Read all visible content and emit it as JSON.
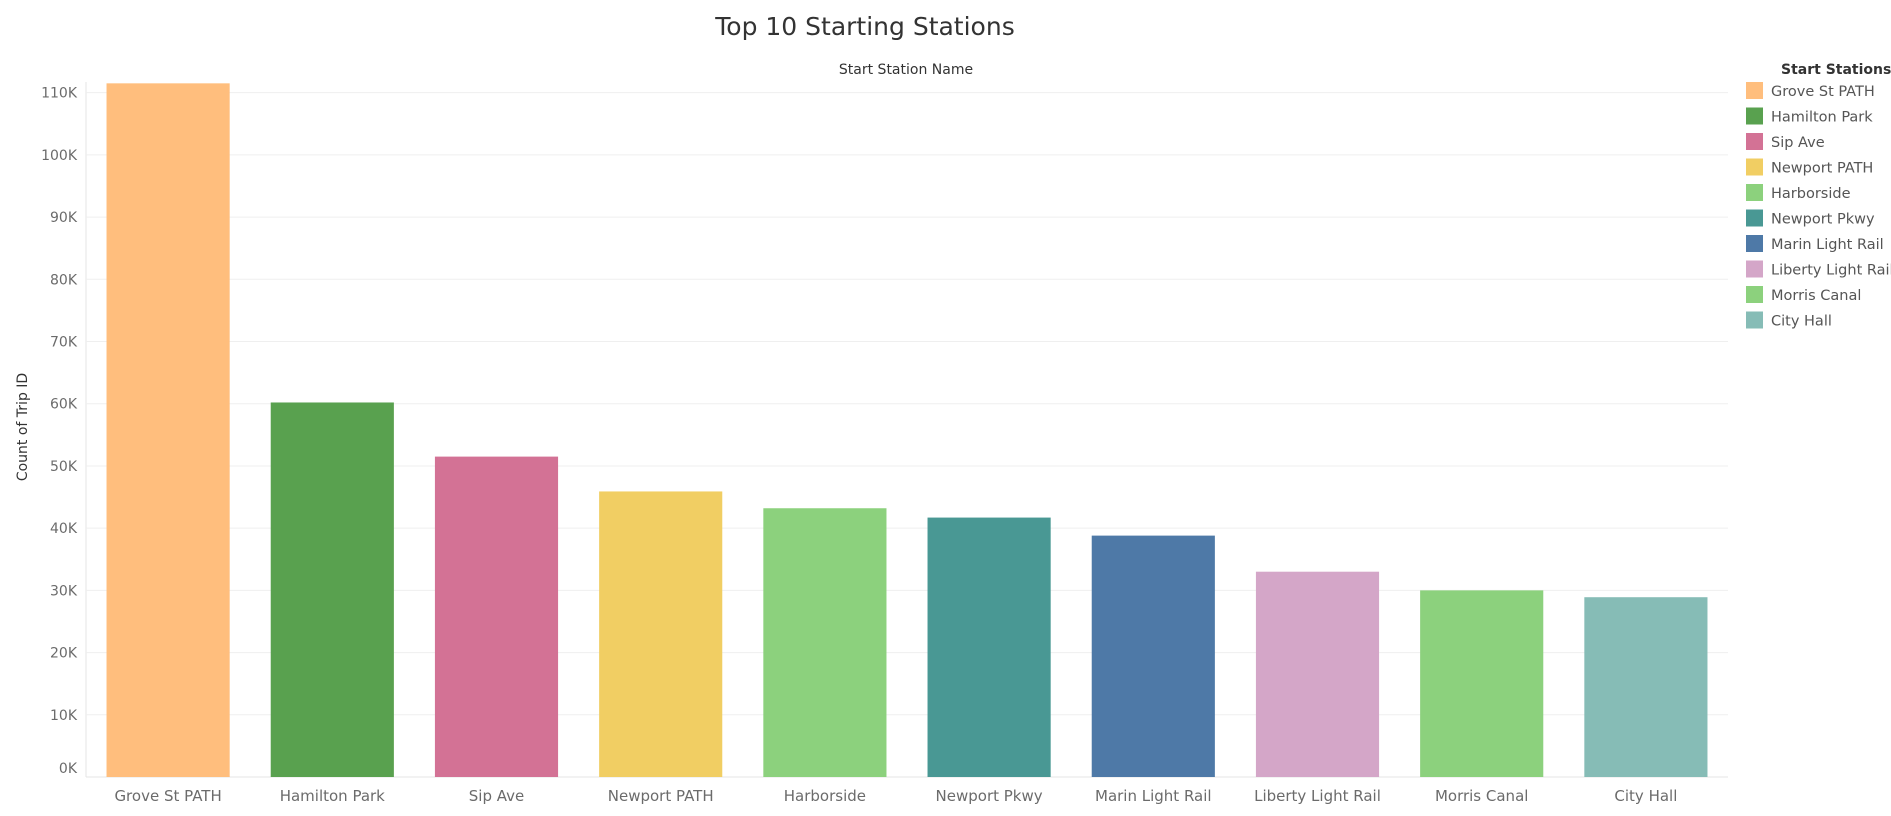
{
  "chart_data": {
    "type": "bar",
    "title": "Top 10 Starting Stations",
    "subtitle": "Start Station Name",
    "xlabel": "",
    "ylabel": "Count of Trip ID",
    "ylim": [
      0,
      113000
    ],
    "yticks": [
      0,
      10000,
      20000,
      30000,
      40000,
      50000,
      60000,
      70000,
      80000,
      90000,
      100000,
      110000
    ],
    "ytick_labels": [
      "0K",
      "10K",
      "20K",
      "30K",
      "40K",
      "50K",
      "60K",
      "70K",
      "80K",
      "90K",
      "100K",
      "110K"
    ],
    "categories": [
      "Grove St PATH",
      "Hamilton Park",
      "Sip Ave",
      "Newport PATH",
      "Harborside",
      "Newport Pkwy",
      "Marin Light Rail",
      "Liberty Light Rail",
      "Morris Canal",
      "City Hall"
    ],
    "values": [
      111500,
      60200,
      51500,
      45900,
      43200,
      41700,
      38800,
      33000,
      30000,
      28900
    ],
    "colors": [
      "#ffbe7d",
      "#59a14f",
      "#d37295",
      "#f1ce63",
      "#8cd17d",
      "#499894",
      "#4e79a7",
      "#d4a6c8",
      "#8cd17d",
      "#86bcb6"
    ],
    "legend": {
      "title": "Start Stations",
      "position": "right"
    },
    "grid": true
  }
}
